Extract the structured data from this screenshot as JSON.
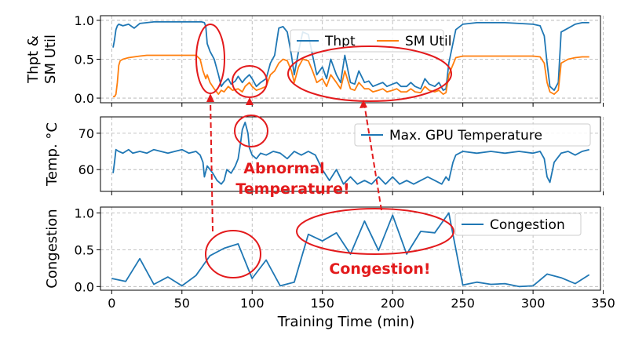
{
  "chart_data": {
    "type": "line",
    "x_label": "Training Time (min)",
    "x_range": [
      -8,
      348
    ],
    "x_ticks": [
      0,
      50,
      100,
      150,
      200,
      250,
      300,
      350
    ],
    "grid": true,
    "panels": [
      {
        "id": "top",
        "ylabel_lines": [
          "Thpt &",
          "SM Util"
        ],
        "ylim": [
          -0.06,
          1.06
        ],
        "yticks": [
          0.0,
          0.5,
          1.0
        ],
        "ytick_labels": [
          "0.0",
          "0.5",
          "1.0"
        ],
        "legend_placement": "top-right",
        "series": [
          {
            "name": "Thpt",
            "color": "#1f77b4",
            "x": [
              1,
              2,
              3,
              4,
              5,
              8,
              12,
              16,
              20,
              25,
              30,
              35,
              40,
              45,
              50,
              55,
              60,
              64,
              66,
              67,
              68,
              70,
              73,
              76,
              78,
              80,
              83,
              85,
              88,
              90,
              93,
              95,
              98,
              100,
              103,
              106,
              110,
              113,
              116,
              119,
              122,
              125,
              128,
              130,
              133,
              136,
              140,
              143,
              146,
              150,
              153,
              156,
              160,
              163,
              166,
              170,
              173,
              176,
              180,
              183,
              186,
              190,
              193,
              196,
              200,
              203,
              206,
              210,
              213,
              216,
              220,
              223,
              226,
              230,
              233,
              236,
              238,
              240,
              245,
              250,
              260,
              270,
              280,
              290,
              300,
              305,
              308,
              310,
              312,
              315,
              318,
              320,
              325,
              330,
              335,
              340
            ],
            "y": [
              0.65,
              0.75,
              0.88,
              0.93,
              0.95,
              0.93,
              0.95,
              0.9,
              0.96,
              0.97,
              0.98,
              0.98,
              0.98,
              0.98,
              0.98,
              0.98,
              0.98,
              0.98,
              0.97,
              0.92,
              0.7,
              0.6,
              0.5,
              0.3,
              0.15,
              0.2,
              0.25,
              0.18,
              0.22,
              0.28,
              0.2,
              0.25,
              0.3,
              0.25,
              0.15,
              0.2,
              0.25,
              0.45,
              0.55,
              0.9,
              0.92,
              0.85,
              0.55,
              0.3,
              0.6,
              0.85,
              0.82,
              0.55,
              0.3,
              0.4,
              0.25,
              0.5,
              0.3,
              0.2,
              0.55,
              0.2,
              0.18,
              0.35,
              0.2,
              0.22,
              0.15,
              0.18,
              0.2,
              0.15,
              0.18,
              0.2,
              0.15,
              0.15,
              0.2,
              0.15,
              0.12,
              0.25,
              0.18,
              0.15,
              0.2,
              0.1,
              0.12,
              0.45,
              0.88,
              0.95,
              0.97,
              0.97,
              0.97,
              0.96,
              0.95,
              0.93,
              0.8,
              0.45,
              0.15,
              0.1,
              0.2,
              0.85,
              0.9,
              0.95,
              0.97,
              0.97
            ]
          },
          {
            "name": "SM Util",
            "color": "#ff7f0e",
            "x": [
              1,
              2,
              3,
              4,
              5,
              6,
              8,
              12,
              16,
              20,
              25,
              30,
              35,
              40,
              45,
              50,
              55,
              60,
              63,
              65,
              67,
              68,
              70,
              73,
              76,
              78,
              80,
              83,
              86,
              90,
              93,
              95,
              98,
              100,
              103,
              106,
              110,
              113,
              116,
              119,
              122,
              125,
              128,
              130,
              133,
              136,
              140,
              143,
              146,
              150,
              153,
              156,
              160,
              163,
              166,
              170,
              173,
              176,
              180,
              183,
              186,
              190,
              193,
              196,
              200,
              203,
              206,
              210,
              213,
              216,
              220,
              223,
              226,
              230,
              233,
              236,
              238,
              240,
              245,
              250,
              260,
              270,
              280,
              290,
              300,
              305,
              308,
              310,
              312,
              315,
              318,
              320,
              325,
              330,
              335,
              340
            ],
            "y": [
              0.02,
              0.02,
              0.05,
              0.2,
              0.42,
              0.48,
              0.5,
              0.52,
              0.53,
              0.54,
              0.55,
              0.55,
              0.55,
              0.55,
              0.55,
              0.55,
              0.55,
              0.55,
              0.5,
              0.35,
              0.25,
              0.3,
              0.2,
              0.12,
              0.05,
              0.1,
              0.08,
              0.15,
              0.1,
              0.12,
              0.08,
              0.15,
              0.2,
              0.15,
              0.1,
              0.12,
              0.15,
              0.3,
              0.35,
              0.45,
              0.5,
              0.48,
              0.35,
              0.2,
              0.4,
              0.5,
              0.48,
              0.35,
              0.2,
              0.25,
              0.15,
              0.3,
              0.2,
              0.12,
              0.35,
              0.12,
              0.1,
              0.2,
              0.12,
              0.12,
              0.08,
              0.1,
              0.12,
              0.08,
              0.1,
              0.12,
              0.08,
              0.08,
              0.12,
              0.08,
              0.07,
              0.15,
              0.1,
              0.08,
              0.1,
              0.05,
              0.07,
              0.3,
              0.52,
              0.54,
              0.54,
              0.54,
              0.54,
              0.54,
              0.54,
              0.53,
              0.45,
              0.2,
              0.08,
              0.05,
              0.1,
              0.45,
              0.5,
              0.52,
              0.53,
              0.53
            ]
          }
        ]
      },
      {
        "id": "middle",
        "ylabel_lines": [
          "Temp. °C"
        ],
        "ylim": [
          54,
          74.5
        ],
        "yticks": [
          60,
          70
        ],
        "ytick_labels": [
          "60",
          "70"
        ],
        "legend_placement": "top-right",
        "series": [
          {
            "name": "Max. GPU Temperature",
            "color": "#1f77b4",
            "x": [
              1,
              2,
              3,
              5,
              8,
              12,
              15,
              20,
              25,
              30,
              35,
              40,
              45,
              50,
              55,
              60,
              63,
              65,
              66,
              68,
              70,
              72,
              75,
              78,
              80,
              82,
              85,
              88,
              90,
              92,
              93,
              95,
              97,
              98,
              100,
              103,
              106,
              110,
              115,
              120,
              125,
              130,
              135,
              140,
              145,
              150,
              155,
              160,
              165,
              170,
              175,
              180,
              185,
              190,
              195,
              200,
              205,
              210,
              215,
              220,
              225,
              230,
              235,
              238,
              240,
              243,
              245,
              250,
              260,
              270,
              280,
              290,
              300,
              305,
              308,
              310,
              312,
              315,
              320,
              325,
              330,
              335,
              340
            ],
            "y": [
              59,
              62,
              65.5,
              65,
              64.5,
              65.5,
              64.5,
              65,
              64.5,
              65.5,
              65,
              64.5,
              65,
              65.5,
              64.5,
              65,
              64,
              62,
              58,
              61,
              60,
              59,
              57,
              56,
              57,
              60,
              59,
              61,
              63,
              68,
              71,
              73,
              70,
              66,
              64,
              63,
              64.5,
              64,
              65,
              64.5,
              63,
              65,
              64,
              65,
              64,
              60,
              57,
              60,
              56,
              58,
              56,
              57,
              56,
              58,
              56,
              58,
              56,
              57,
              56,
              57,
              58,
              57,
              56,
              58,
              57,
              62,
              64,
              65,
              64.5,
              65,
              64.5,
              65,
              64.5,
              65,
              63,
              58,
              56.5,
              62,
              64.5,
              65,
              64,
              65,
              65.5
            ]
          }
        ]
      },
      {
        "id": "bottom",
        "ylabel_lines": [
          "Congestion"
        ],
        "ylim": [
          -0.05,
          1.08
        ],
        "yticks": [
          0.0,
          0.5,
          1.0
        ],
        "ytick_labels": [
          "0.0",
          "0.5",
          "1.0"
        ],
        "legend_placement": "top-right",
        "series": [
          {
            "name": "Congestion",
            "color": "#1f77b4",
            "x": [
              0,
              10,
              20,
              30,
              40,
              50,
              60,
              70,
              80,
              90,
              100,
              110,
              120,
              130,
              140,
              150,
              160,
              170,
              180,
              190,
              200,
              210,
              220,
              230,
              240,
              250,
              260,
              270,
              280,
              290,
              300,
              310,
              320,
              330,
              340
            ],
            "y": [
              0.11,
              0.07,
              0.38,
              0.03,
              0.13,
              0.01,
              0.15,
              0.42,
              0.52,
              0.58,
              0.11,
              0.36,
              0.01,
              0.06,
              0.71,
              0.62,
              0.73,
              0.44,
              0.89,
              0.49,
              0.97,
              0.44,
              0.75,
              0.73,
              1.0,
              0.02,
              0.06,
              0.03,
              0.04,
              0.0,
              0.01,
              0.17,
              0.12,
              0.04,
              0.16
            ]
          }
        ]
      }
    ],
    "annotations": [
      {
        "text_lines": [
          "Abnormal",
          "Temperature!"
        ],
        "color": "#e31a1c"
      },
      {
        "text_lines": [
          "Congestion!"
        ],
        "color": "#e31a1c"
      }
    ]
  }
}
